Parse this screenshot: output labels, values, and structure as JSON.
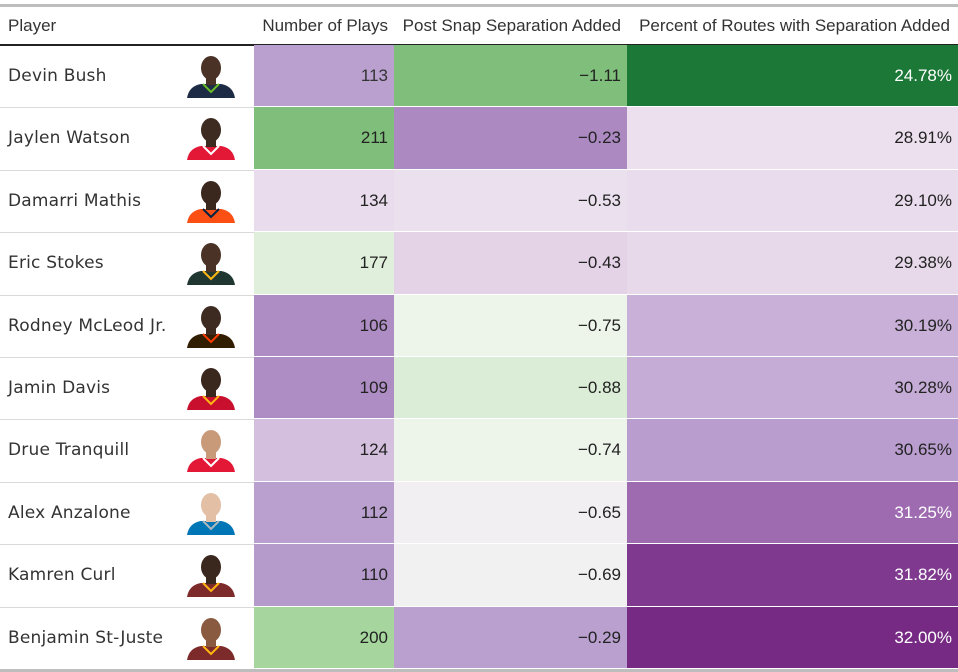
{
  "columns": {
    "player": "Player",
    "plays": "Number of Plays",
    "separation": "Post Snap Separation Added",
    "percent": "Percent of Routes with Separation Added"
  },
  "chart_data": {
    "type": "table",
    "columns": [
      "Player",
      "Number of Plays",
      "Post Snap Separation Added",
      "Percent of Routes with Separation Added"
    ],
    "rows": [
      {
        "player": "Devin Bush",
        "plays": "113",
        "separation": "−1.11",
        "percent": "24.78%",
        "plays_bg": "#b9a0cf",
        "plays_fg": "#333333",
        "sep_bg": "#7fbf7b",
        "sep_fg": "#222222",
        "pct_bg": "#1b7837",
        "pct_fg": "#ffffff",
        "jersey": "#1d2b45",
        "trim": "#69be28",
        "skin": "#4a3226"
      },
      {
        "player": "Jaylen Watson",
        "plays": "211",
        "separation": "−0.23",
        "percent": "28.91%",
        "plays_bg": "#7fbf7b",
        "plays_fg": "#222222",
        "sep_bg": "#ad89c2",
        "sep_fg": "#222222",
        "pct_bg": "#ece0ef",
        "pct_fg": "#222222",
        "jersey": "#e31837",
        "trim": "#ffffff",
        "skin": "#3d2a20"
      },
      {
        "player": "Damarri Mathis",
        "plays": "134",
        "separation": "−0.53",
        "percent": "29.10%",
        "plays_bg": "#e9dcec",
        "plays_fg": "#222222",
        "sep_bg": "#ebe1ee",
        "sep_fg": "#222222",
        "pct_bg": "#e9dcec",
        "pct_fg": "#222222",
        "jersey": "#fb4f14",
        "trim": "#002244",
        "skin": "#3a271e"
      },
      {
        "player": "Eric Stokes",
        "plays": "177",
        "separation": "−0.43",
        "percent": "29.38%",
        "plays_bg": "#e0efdb",
        "plays_fg": "#222222",
        "sep_bg": "#e4d2e7",
        "sep_fg": "#222222",
        "pct_bg": "#e7d9ea",
        "pct_fg": "#222222",
        "jersey": "#203731",
        "trim": "#ffb612",
        "skin": "#4a3226"
      },
      {
        "player": "Rodney McLeod Jr.",
        "plays": "106",
        "separation": "−0.75",
        "percent": "30.19%",
        "plays_bg": "#ae8dc4",
        "plays_fg": "#222222",
        "sep_bg": "#edf4ea",
        "sep_fg": "#222222",
        "pct_bg": "#c8b0d8",
        "pct_fg": "#222222",
        "jersey": "#311d00",
        "trim": "#ff3c00",
        "skin": "#3d2a20"
      },
      {
        "player": "Jamin Davis",
        "plays": "109",
        "separation": "−0.88",
        "percent": "30.28%",
        "plays_bg": "#ae8dc4",
        "plays_fg": "#222222",
        "sep_bg": "#dbedd6",
        "sep_fg": "#222222",
        "pct_bg": "#c5acd6",
        "pct_fg": "#222222",
        "jersey": "#c8102e",
        "trim": "#ffb612",
        "skin": "#3a271e"
      },
      {
        "player": "Drue Tranquill",
        "plays": "124",
        "separation": "−0.74",
        "percent": "30.65%",
        "plays_bg": "#d4bfdf",
        "plays_fg": "#222222",
        "sep_bg": "#edf4ea",
        "sep_fg": "#222222",
        "pct_bg": "#b99dcf",
        "pct_fg": "#222222",
        "jersey": "#e31837",
        "trim": "#ffffff",
        "skin": "#c99a7a"
      },
      {
        "player": "Alex Anzalone",
        "plays": "112",
        "separation": "−0.65",
        "percent": "31.25%",
        "plays_bg": "#b9a0cf",
        "plays_fg": "#222222",
        "sep_bg": "#f2eff3",
        "sep_fg": "#222222",
        "pct_bg": "#9e6bb0",
        "pct_fg": "#ffffff",
        "jersey": "#0076b6",
        "trim": "#b0b7bc",
        "skin": "#e2bfa5"
      },
      {
        "player": "Kamren Curl",
        "plays": "110",
        "separation": "−0.69",
        "percent": "31.82%",
        "plays_bg": "#b59bcc",
        "plays_fg": "#222222",
        "sep_bg": "#f2f1f1",
        "sep_fg": "#222222",
        "pct_bg": "#7f3a8f",
        "pct_fg": "#ffffff",
        "jersey": "#7d2a2a",
        "trim": "#ffb612",
        "skin": "#3a271e"
      },
      {
        "player": "Benjamin St-Juste",
        "plays": "200",
        "separation": "−0.29",
        "percent": "32.00%",
        "plays_bg": "#a6d69e",
        "plays_fg": "#222222",
        "sep_bg": "#b9a0cf",
        "sep_fg": "#222222",
        "pct_bg": "#762a83",
        "pct_fg": "#ffffff",
        "jersey": "#7d2a2a",
        "trim": "#ffb612",
        "skin": "#8a5a40"
      }
    ]
  }
}
